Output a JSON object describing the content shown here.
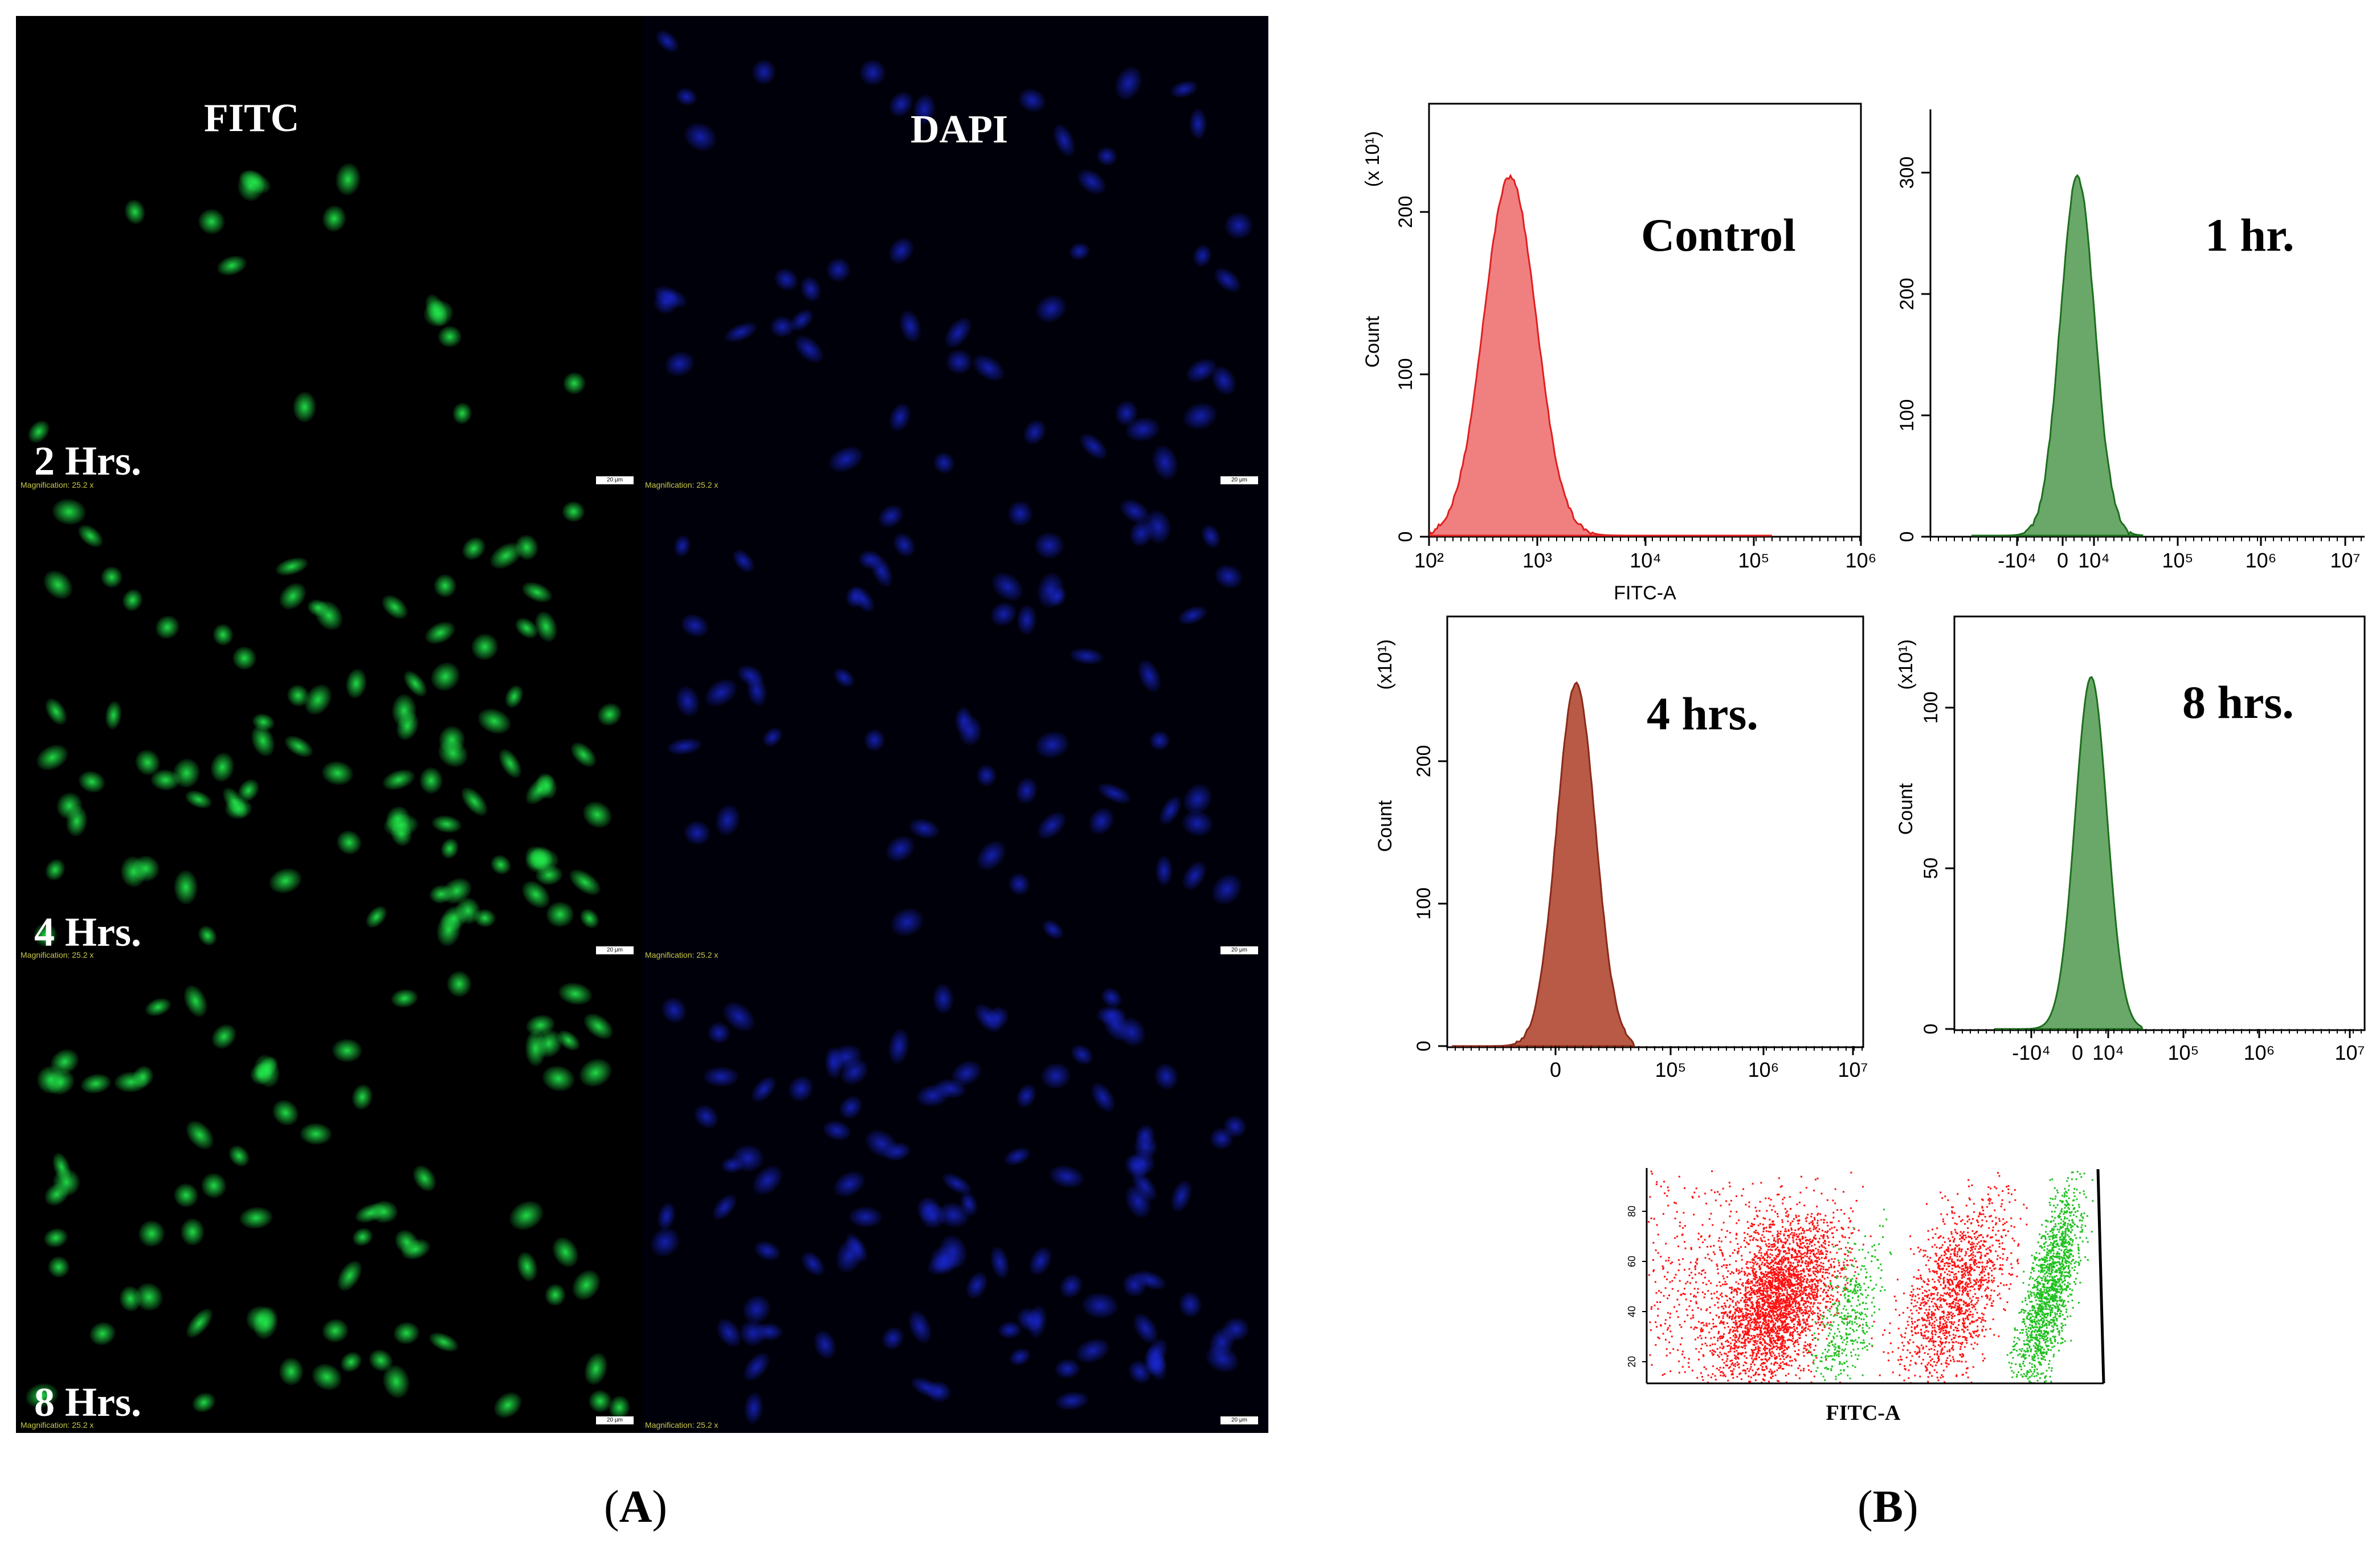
{
  "panel_a": {
    "caption_open": "(",
    "caption_letter": "A",
    "caption_close": ")",
    "channels": [
      "FITC",
      "DAPI"
    ],
    "rows": [
      "2 Hrs.",
      "4 Hrs.",
      "8 Hrs."
    ],
    "magnification_text": "Magnification: 25.2 x",
    "scalebar_text": "20 μm",
    "colors": {
      "fitc": "#22e64a",
      "dapi": "#1a28d8",
      "background": "#000000"
    }
  },
  "panel_b": {
    "caption_open": "(",
    "caption_letter": "B",
    "caption_close": ")",
    "histograms": [
      {
        "label": "Control",
        "y_scale_label": "(x 10¹)",
        "ylabel": "Count",
        "xlabel": "FITC-A",
        "y_ticks": [
          "0",
          "100",
          "200"
        ],
        "x_ticks": [
          "10²",
          "10³",
          "10⁴",
          "10⁵",
          "10⁶"
        ],
        "color": "#f08080",
        "edge_color": "#e02020"
      },
      {
        "label": "1 hr.",
        "y_scale_label": "",
        "ylabel": "",
        "xlabel": "",
        "y_ticks": [
          "0",
          "100",
          "200",
          "300"
        ],
        "x_ticks": [
          "-10⁴",
          "0",
          "10⁴",
          "10⁵",
          "10⁶",
          "10⁷"
        ],
        "color": "#6aa86a",
        "edge_color": "#1e6e1e"
      },
      {
        "label": "4 hrs.",
        "y_scale_label": "(x10¹)",
        "ylabel": "Count",
        "xlabel": "",
        "y_ticks": [
          "0",
          "100",
          "200"
        ],
        "x_ticks": [
          "0",
          "10⁵",
          "10⁶",
          "10⁷"
        ],
        "color": "#b85a45",
        "edge_color": "#8a2a1a"
      },
      {
        "label": "8 hrs.",
        "y_scale_label": "(x10¹)",
        "ylabel": "Count",
        "xlabel": "",
        "y_ticks": [
          "0",
          "50",
          "100"
        ],
        "x_ticks": [
          "-10⁴",
          "0",
          "10⁴",
          "10⁵",
          "10⁶",
          "10⁷"
        ],
        "color": "#6aa86a",
        "edge_color": "#1e6e1e"
      }
    ],
    "overlay": {
      "xlabel": "FITC-A",
      "y_ticks": [
        "20",
        "40",
        "60",
        "80"
      ],
      "colors": {
        "red": "#ff1010",
        "green": "#20c020"
      }
    }
  }
}
